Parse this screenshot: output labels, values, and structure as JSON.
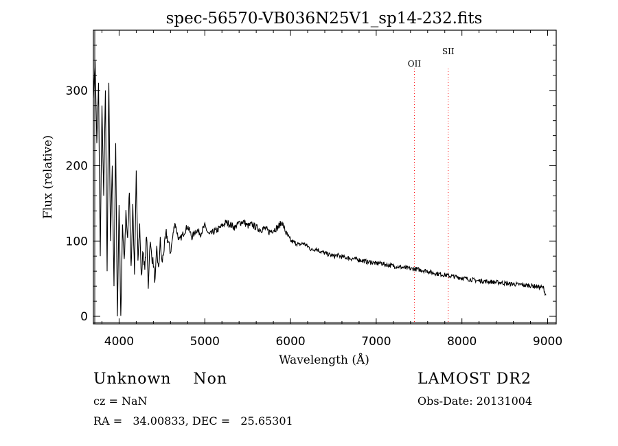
{
  "chart_data": {
    "type": "line",
    "title": "spec-56570-VB036N25V1_sp14-232.fits",
    "xlabel": "Wavelength (Å)",
    "ylabel": "Flux (relative)",
    "xlim": [
      3700,
      9100
    ],
    "ylim": [
      -10,
      380
    ],
    "xticks": [
      4000,
      5000,
      6000,
      7000,
      8000,
      9000
    ],
    "yticks": [
      0,
      100,
      200,
      300
    ],
    "grid": false,
    "line_color": "#000000",
    "marker_color": "#ff0000",
    "lines": [
      {
        "label": "OII",
        "x": 7445
      },
      {
        "label": "SII",
        "x": 7840
      }
    ],
    "spectrum": {
      "x": [
        3700,
        3720,
        3740,
        3760,
        3780,
        3800,
        3820,
        3840,
        3860,
        3880,
        3900,
        3920,
        3940,
        3960,
        3980,
        4000,
        4020,
        4040,
        4060,
        4080,
        4100,
        4120,
        4140,
        4160,
        4180,
        4200,
        4220,
        4240,
        4260,
        4280,
        4300,
        4320,
        4340,
        4360,
        4380,
        4400,
        4420,
        4440,
        4460,
        4480,
        4500,
        4550,
        4600,
        4650,
        4700,
        4750,
        4800,
        4850,
        4900,
        4950,
        5000,
        5050,
        5100,
        5150,
        5200,
        5250,
        5300,
        5350,
        5400,
        5450,
        5500,
        5550,
        5600,
        5650,
        5700,
        5750,
        5800,
        5850,
        5900,
        5950,
        6000,
        6050,
        6100,
        6150,
        6200,
        6250,
        6300,
        6350,
        6400,
        6450,
        6500,
        6550,
        6600,
        6650,
        6700,
        6750,
        6800,
        6850,
        6900,
        6950,
        7000,
        7050,
        7100,
        7150,
        7200,
        7250,
        7300,
        7350,
        7400,
        7450,
        7500,
        7550,
        7600,
        7650,
        7700,
        7750,
        7800,
        7850,
        7900,
        7950,
        8000,
        8050,
        8100,
        8150,
        8200,
        8250,
        8300,
        8350,
        8400,
        8450,
        8500,
        8550,
        8600,
        8650,
        8700,
        8750,
        8800,
        8850,
        8900,
        8950,
        8980
      ],
      "y": [
        290,
        340,
        230,
        310,
        80,
        280,
        160,
        300,
        60,
        310,
        100,
        200,
        40,
        230,
        0,
        150,
        -5,
        120,
        70,
        140,
        100,
        170,
        60,
        150,
        50,
        190,
        80,
        120,
        50,
        90,
        60,
        110,
        40,
        100,
        80,
        70,
        45,
        90,
        60,
        100,
        70,
        110,
        85,
        125,
        100,
        110,
        120,
        105,
        115,
        110,
        120,
        108,
        112,
        115,
        120,
        125,
        122,
        118,
        124,
        126,
        120,
        122,
        118,
        115,
        117,
        112,
        115,
        118,
        125,
        110,
        100,
        98,
        95,
        97,
        93,
        88,
        90,
        86,
        84,
        82,
        80,
        81,
        79,
        78,
        77,
        76,
        75,
        74,
        72,
        72,
        70,
        71,
        69,
        68,
        67,
        66,
        65,
        64,
        63,
        63,
        62,
        61,
        60,
        58,
        57,
        56,
        55,
        54,
        53,
        52,
        51,
        50,
        49,
        48,
        47,
        47,
        46,
        46,
        45,
        45,
        44,
        43,
        43,
        42,
        42,
        41,
        41,
        40,
        39,
        38,
        28
      ]
    }
  },
  "info": {
    "left_line1": "Unknown    Non",
    "left_line2": "cz = NaN",
    "left_line3": "RA =   34.00833, DEC =   25.65301",
    "right_line1": "LAMOST DR2",
    "right_line2": "Obs-Date: 20131004"
  }
}
